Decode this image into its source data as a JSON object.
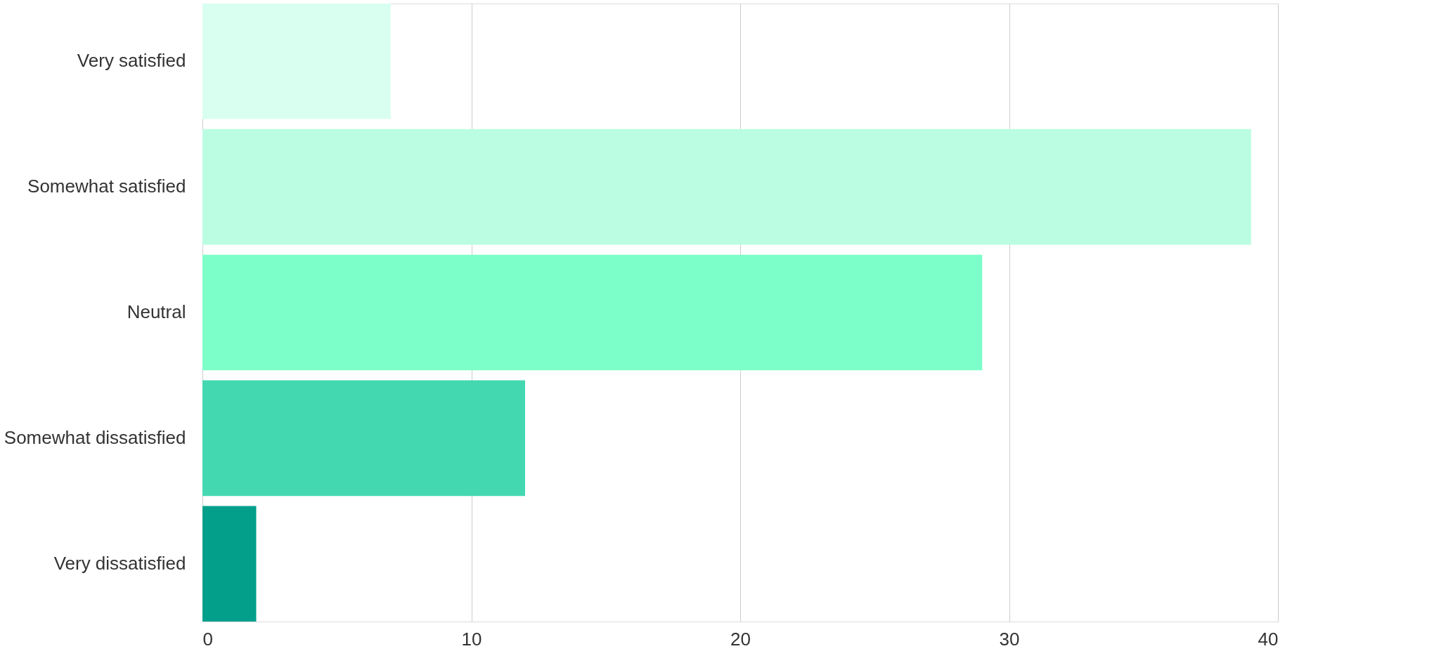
{
  "chart_data": {
    "type": "bar",
    "orientation": "horizontal",
    "categories": [
      "Very satisfied",
      "Somewhat satisfied",
      "Neutral",
      "Somewhat dissatisfied",
      "Very dissatisfied"
    ],
    "values": [
      7,
      39,
      29,
      12,
      2
    ],
    "colors": [
      "#d9fff0",
      "#bbfde2",
      "#7cffc9",
      "#44d8b0",
      "#039f8b"
    ],
    "xlim": [
      0,
      40
    ],
    "xticks": [
      0,
      10,
      20,
      30,
      40
    ],
    "grid": "x"
  }
}
